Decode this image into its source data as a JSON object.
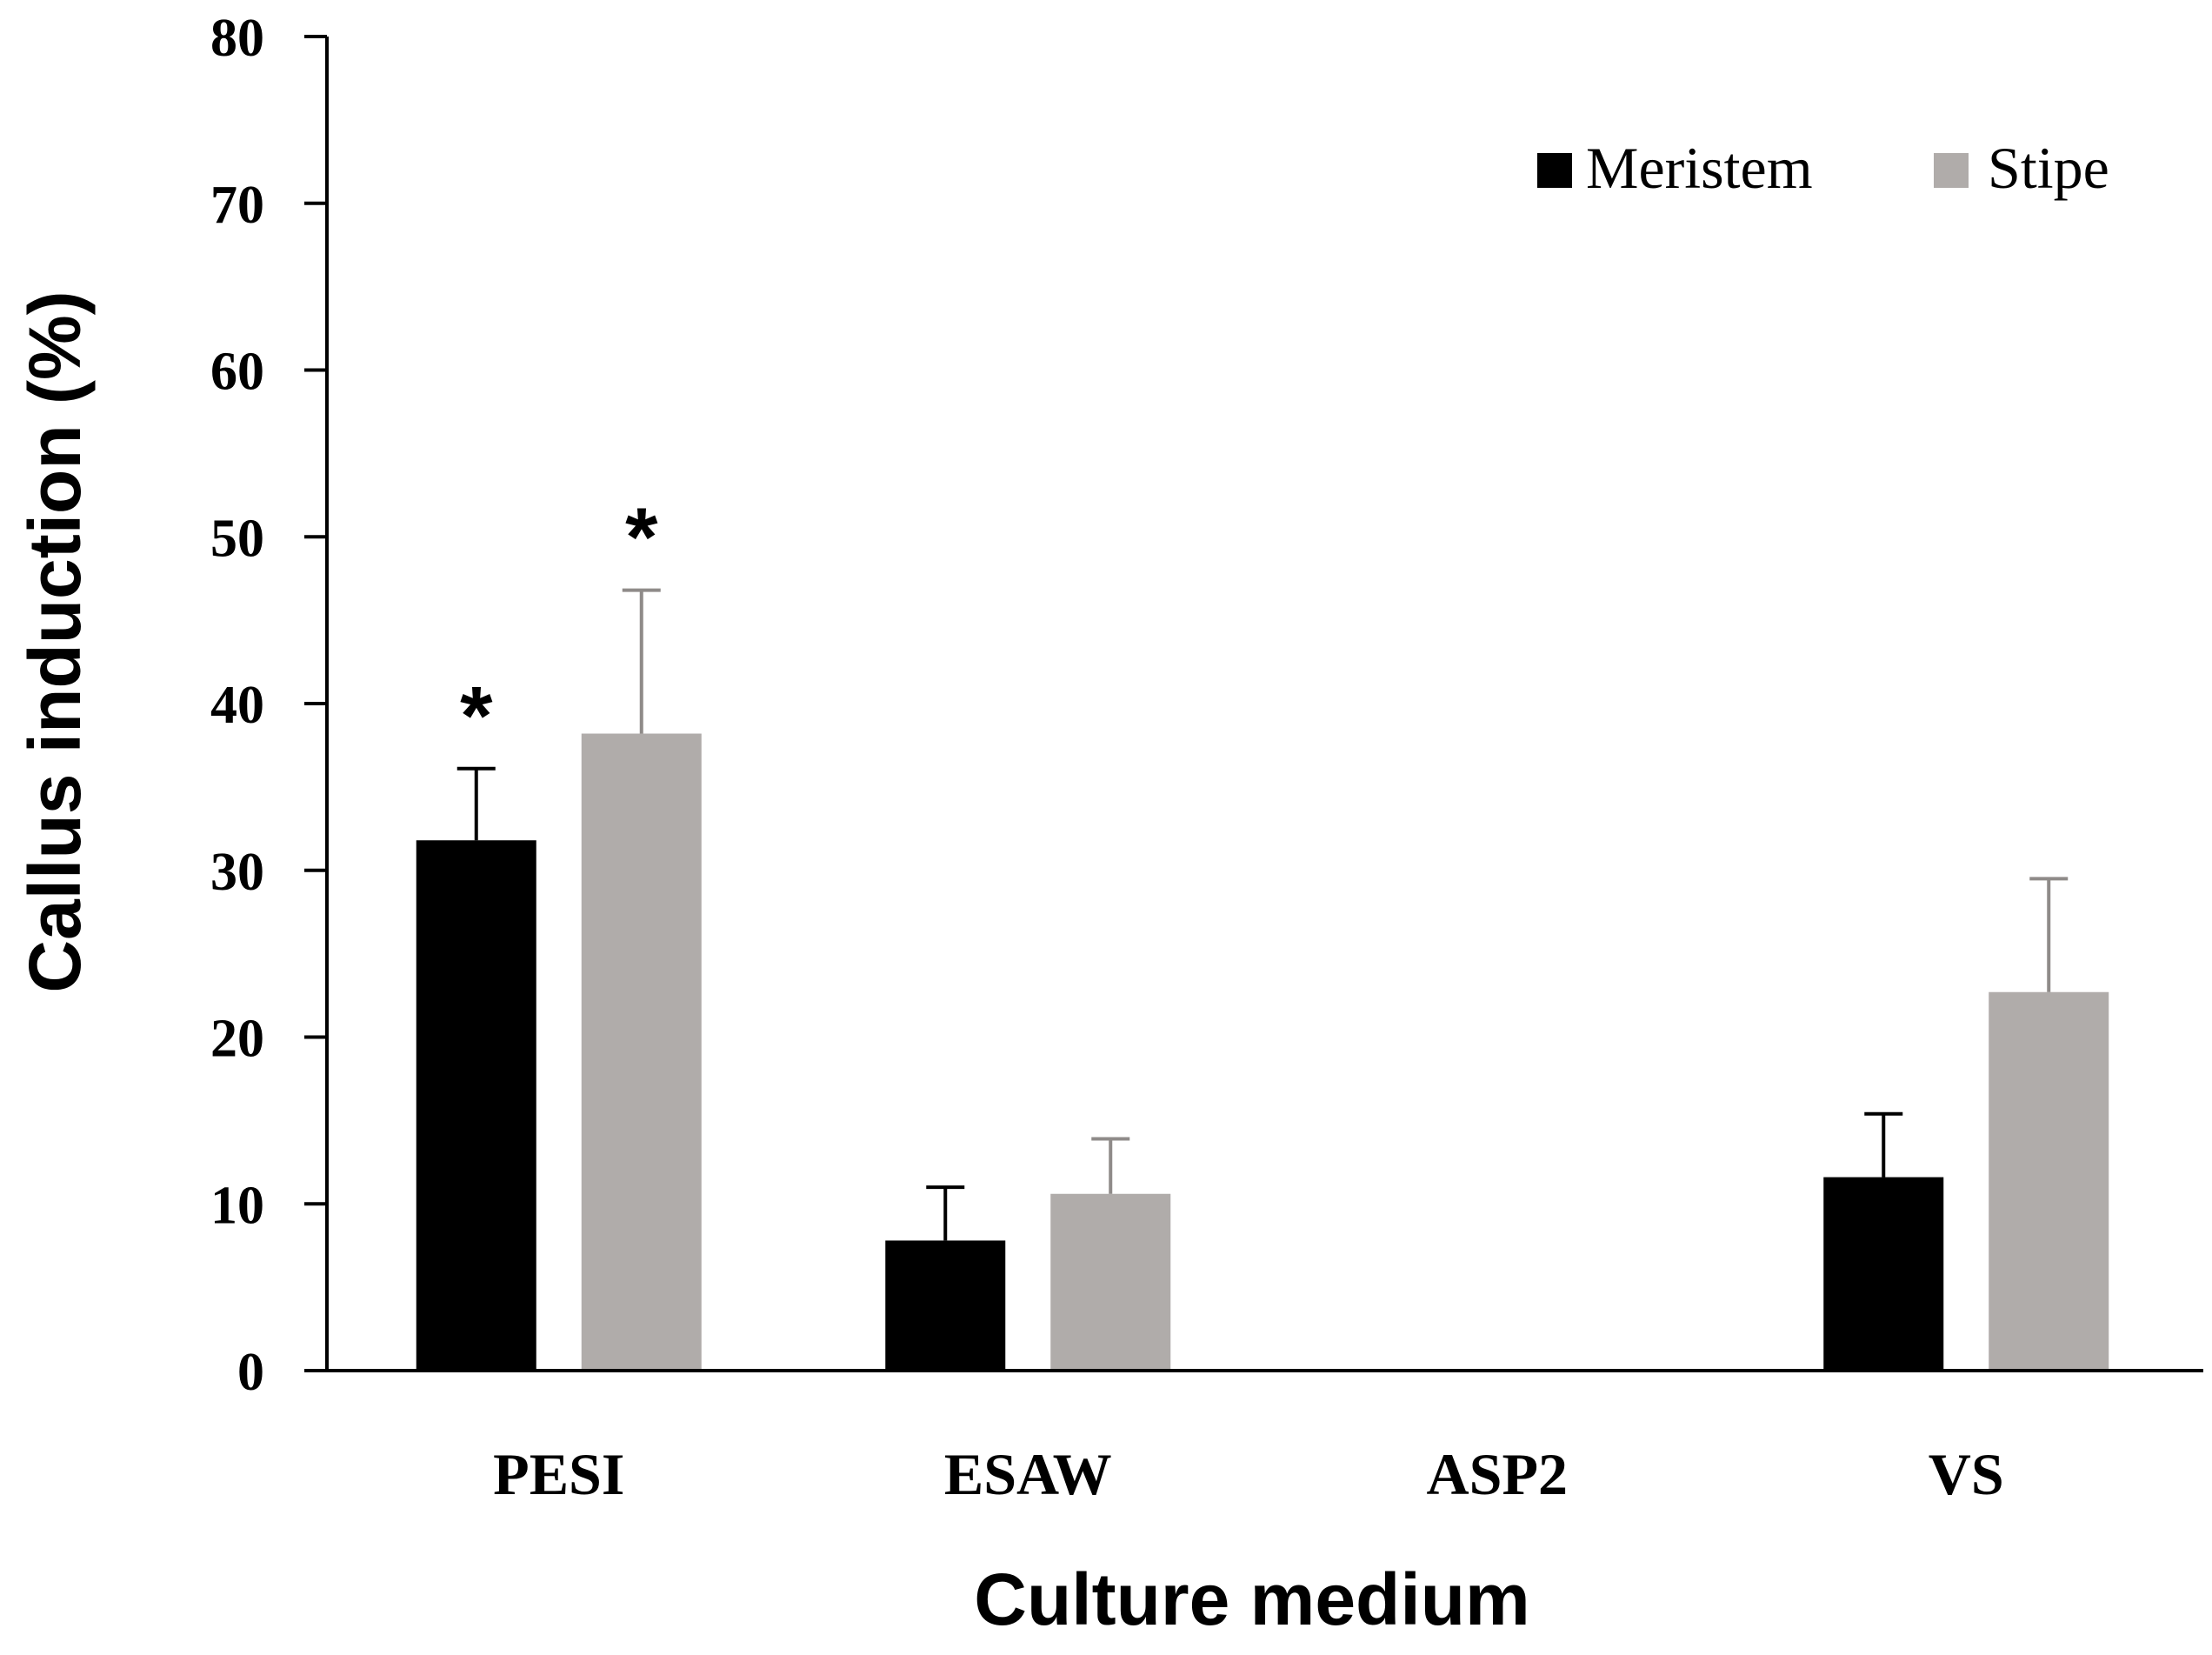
{
  "chart_data": {
    "type": "bar",
    "title": "",
    "xlabel": "Culture medium",
    "ylabel": "Callus induction (%)",
    "ylim": [
      0,
      80
    ],
    "yticks": [
      0,
      10,
      20,
      30,
      40,
      50,
      60,
      70,
      80
    ],
    "ytick_labels": [
      "0",
      "10",
      "20",
      "30",
      "40",
      "50",
      "60",
      "70",
      "80"
    ],
    "categories": [
      "PESI",
      "ESAW",
      "ASP2",
      "VS"
    ],
    "series": [
      {
        "name": "Meristem",
        "color": "#000000",
        "values": [
          31.8,
          7.8,
          0,
          11.6
        ],
        "errors": [
          4.3,
          3.2,
          0,
          3.8
        ],
        "annotations": [
          "*",
          "",
          "",
          ""
        ]
      },
      {
        "name": "Stipe",
        "color": "#b0acaa",
        "values": [
          38.2,
          10.6,
          0,
          22.7
        ],
        "errors": [
          8.6,
          3.3,
          0,
          6.8
        ],
        "annotations": [
          "*",
          "",
          "",
          ""
        ]
      }
    ],
    "legend": "top-right",
    "grid": false
  }
}
